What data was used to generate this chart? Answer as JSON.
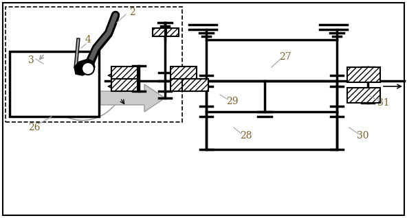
{
  "fig_width": 5.92,
  "fig_height": 3.18,
  "dpi": 100,
  "bg_color": "#ffffff",
  "lc": "#000000",
  "gc": "#aaaaaa",
  "label_color": "#7a6030",
  "font_size": 10
}
